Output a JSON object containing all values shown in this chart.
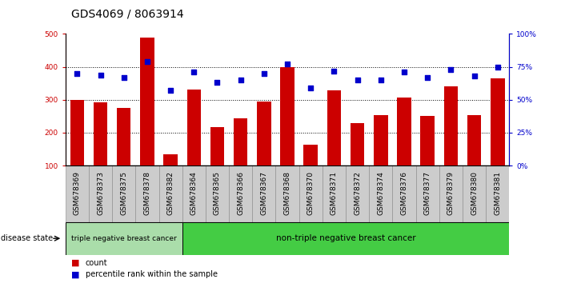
{
  "title": "GDS4069 / 8063914",
  "categories": [
    "GSM678369",
    "GSM678373",
    "GSM678375",
    "GSM678378",
    "GSM678382",
    "GSM678364",
    "GSM678365",
    "GSM678366",
    "GSM678367",
    "GSM678368",
    "GSM678370",
    "GSM678371",
    "GSM678372",
    "GSM678374",
    "GSM678376",
    "GSM678377",
    "GSM678379",
    "GSM678380",
    "GSM678381"
  ],
  "bar_values": [
    300,
    293,
    275,
    490,
    135,
    330,
    218,
    244,
    295,
    400,
    163,
    328,
    228,
    253,
    307,
    252,
    340,
    253,
    365
  ],
  "percentile_values": [
    70,
    69,
    67,
    79,
    57,
    71,
    63,
    65,
    70,
    77,
    59,
    72,
    65,
    65,
    71,
    67,
    73,
    68,
    75
  ],
  "bar_color": "#cc0000",
  "dot_color": "#0000cc",
  "ylim_left": [
    100,
    500
  ],
  "ylim_right": [
    0,
    100
  ],
  "yticks_left": [
    100,
    200,
    300,
    400,
    500
  ],
  "yticks_right": [
    0,
    25,
    50,
    75,
    100
  ],
  "ytick_labels_right": [
    "0%",
    "25%",
    "50%",
    "75%",
    "100%"
  ],
  "grid_values": [
    200,
    300,
    400
  ],
  "group1_count": 5,
  "group1_label": "triple negative breast cancer",
  "group2_label": "non-triple negative breast cancer",
  "group1_color": "#aaddaa",
  "group2_color": "#44cc44",
  "disease_state_label": "disease state",
  "legend_count_label": "count",
  "legend_pct_label": "percentile rank within the sample",
  "background_color": "#ffffff",
  "tick_label_color_left": "#cc0000",
  "tick_label_color_right": "#0000cc",
  "tickbox_color": "#cccccc",
  "title_fontsize": 10,
  "tick_fontsize": 6.5,
  "bar_width": 0.6
}
